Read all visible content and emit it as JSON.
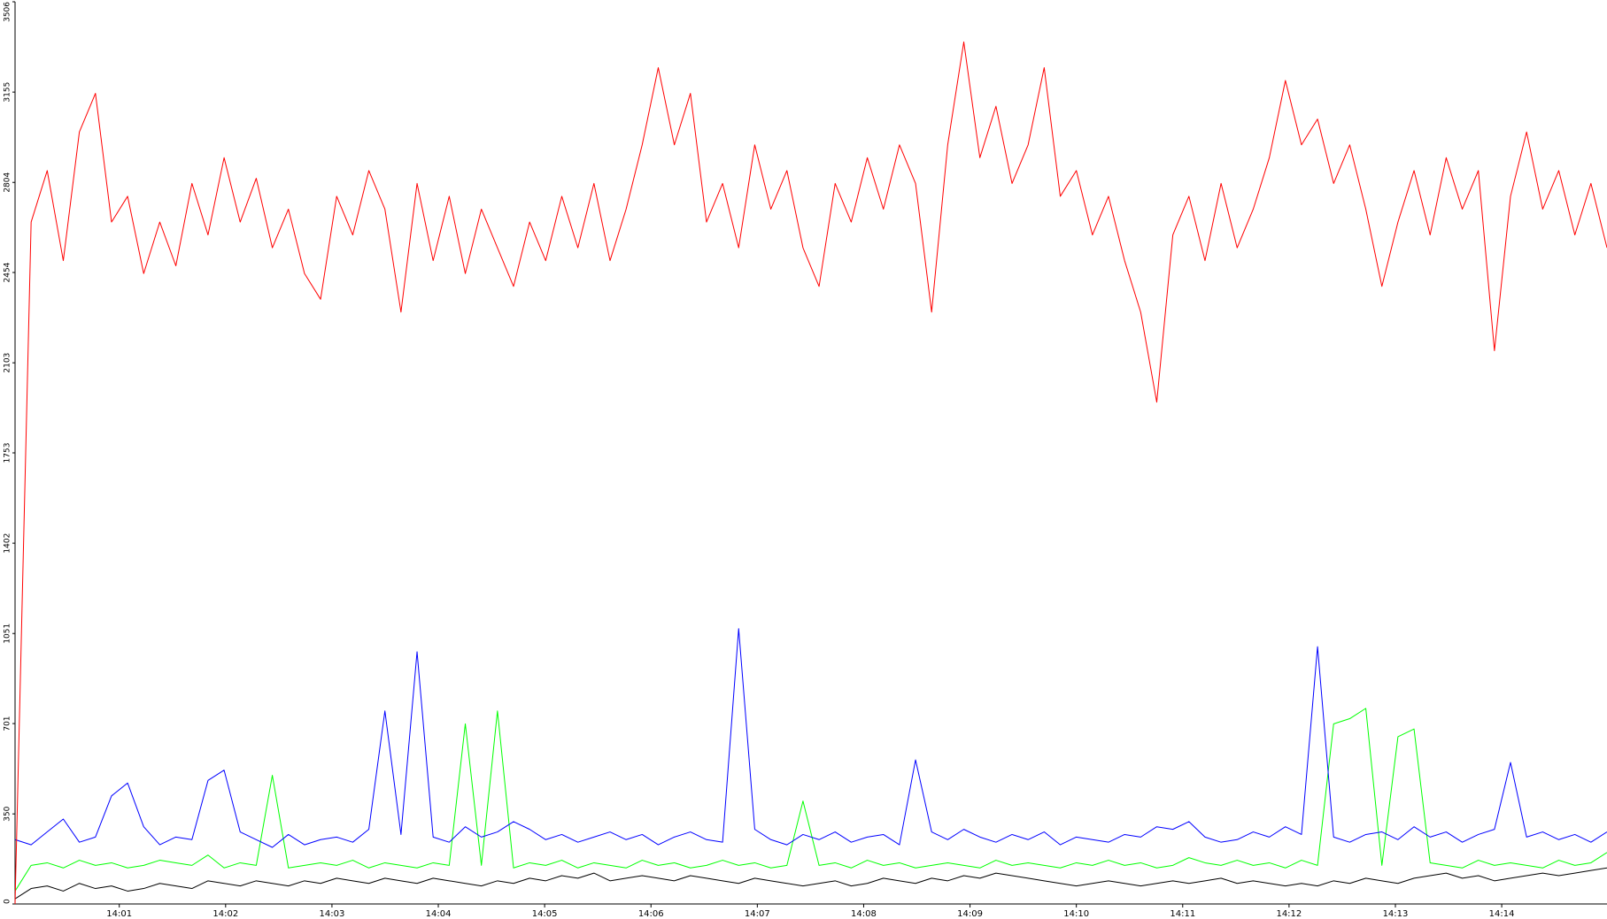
{
  "chart_data": {
    "type": "line",
    "xlim": [
      0.02,
      14.99
    ],
    "xticks": [
      {
        "value": 1,
        "label": "14:01"
      },
      {
        "value": 2,
        "label": "14:02"
      },
      {
        "value": 3,
        "label": "14:03"
      },
      {
        "value": 4,
        "label": "14:04"
      },
      {
        "value": 5,
        "label": "14:05"
      },
      {
        "value": 6,
        "label": "14:06"
      },
      {
        "value": 7,
        "label": "14:07"
      },
      {
        "value": 8,
        "label": "14:08"
      },
      {
        "value": 9,
        "label": "14:09"
      },
      {
        "value": 10,
        "label": "14:10"
      },
      {
        "value": 11,
        "label": "14:11"
      },
      {
        "value": 12,
        "label": "14:12"
      },
      {
        "value": 13,
        "label": "14:13"
      },
      {
        "value": 14,
        "label": "14:14"
      }
    ],
    "ylim": [
      0,
      3506
    ],
    "yticks": [
      0,
      350,
      701,
      1051,
      1402,
      1753,
      2103,
      2454,
      2804,
      3155,
      3506
    ],
    "grid": false,
    "series": [
      {
        "color": "#ff0000",
        "values": [
          0,
          2650,
          2850,
          2500,
          3000,
          3150,
          2650,
          2750,
          2450,
          2650,
          2480,
          2800,
          2600,
          2900,
          2650,
          2820,
          2550,
          2700,
          2450,
          2350,
          2750,
          2600,
          2850,
          2700,
          2300,
          2800,
          2500,
          2750,
          2450,
          2700,
          2550,
          2400,
          2650,
          2500,
          2750,
          2550,
          2800,
          2500,
          2700,
          2950,
          3250,
          2950,
          3150,
          2650,
          2800,
          2550,
          2950,
          2700,
          2850,
          2550,
          2400,
          2800,
          2650,
          2900,
          2700,
          2950,
          2800,
          2300,
          2950,
          3350,
          2900,
          3100,
          2800,
          2950,
          3250,
          2750,
          2850,
          2600,
          2750,
          2500,
          2300,
          1950,
          2600,
          2750,
          2500,
          2800,
          2550,
          2700,
          2900,
          3200,
          2950,
          3050,
          2800,
          2950,
          2700,
          2400,
          2650,
          2850,
          2600,
          2900,
          2700,
          2850,
          2150,
          2750,
          3000,
          2700,
          2850,
          2600,
          2800,
          2550
        ]
      },
      {
        "color": "#0000ff",
        "values": [
          250,
          230,
          280,
          330,
          240,
          260,
          420,
          470,
          300,
          230,
          260,
          250,
          480,
          520,
          280,
          250,
          220,
          270,
          230,
          250,
          260,
          240,
          290,
          750,
          270,
          980,
          260,
          240,
          300,
          260,
          280,
          320,
          290,
          250,
          270,
          240,
          260,
          280,
          250,
          270,
          230,
          260,
          280,
          250,
          240,
          1070,
          290,
          250,
          230,
          270,
          250,
          280,
          240,
          260,
          270,
          230,
          560,
          280,
          250,
          290,
          260,
          240,
          270,
          250,
          280,
          230,
          260,
          250,
          240,
          270,
          260,
          300,
          290,
          320,
          260,
          240,
          250,
          280,
          260,
          300,
          270,
          1000,
          260,
          240,
          270,
          280,
          250,
          300,
          260,
          280,
          240,
          270,
          290,
          550,
          260,
          280,
          250,
          270,
          240,
          280
        ]
      },
      {
        "color": "#00ff00",
        "values": [
          50,
          150,
          160,
          140,
          170,
          150,
          160,
          140,
          150,
          170,
          160,
          150,
          190,
          140,
          160,
          150,
          500,
          140,
          150,
          160,
          150,
          170,
          140,
          160,
          150,
          140,
          160,
          150,
          700,
          150,
          750,
          140,
          160,
          150,
          170,
          140,
          160,
          150,
          140,
          170,
          150,
          160,
          140,
          150,
          170,
          150,
          160,
          140,
          150,
          400,
          150,
          160,
          140,
          170,
          150,
          160,
          140,
          150,
          160,
          150,
          140,
          170,
          150,
          160,
          150,
          140,
          160,
          150,
          170,
          150,
          160,
          140,
          150,
          180,
          160,
          150,
          170,
          150,
          160,
          140,
          170,
          150,
          700,
          720,
          760,
          150,
          650,
          680,
          160,
          150,
          140,
          170,
          150,
          160,
          150,
          140,
          170,
          150,
          160,
          200
        ]
      },
      {
        "color": "#000000",
        "values": [
          20,
          60,
          70,
          50,
          80,
          60,
          70,
          50,
          60,
          80,
          70,
          60,
          90,
          80,
          70,
          90,
          80,
          70,
          90,
          80,
          100,
          90,
          80,
          100,
          90,
          80,
          100,
          90,
          80,
          70,
          90,
          80,
          100,
          90,
          110,
          100,
          120,
          90,
          100,
          110,
          100,
          90,
          110,
          100,
          90,
          80,
          100,
          90,
          80,
          70,
          80,
          90,
          70,
          80,
          100,
          90,
          80,
          100,
          90,
          110,
          100,
          120,
          110,
          100,
          90,
          80,
          70,
          80,
          90,
          80,
          70,
          80,
          90,
          80,
          90,
          100,
          80,
          90,
          80,
          70,
          80,
          70,
          90,
          80,
          100,
          90,
          80,
          100,
          110,
          120,
          100,
          110,
          90,
          100,
          110,
          120,
          110,
          120,
          130,
          140
        ]
      }
    ]
  }
}
